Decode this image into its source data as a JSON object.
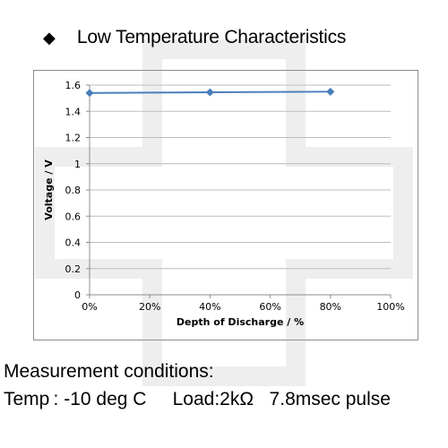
{
  "header": {
    "bullet": "◆",
    "title": "Low Temperature Characteristics"
  },
  "chart_data": {
    "type": "line",
    "xlabel": "Depth of Discharge / %",
    "ylabel": "Voltage / V",
    "x_ticks": [
      "0%",
      "20%",
      "40%",
      "60%",
      "80%",
      "100%"
    ],
    "y_ticks": [
      "0",
      "0.2",
      "0.4",
      "0.6",
      "0.8",
      "1",
      "1.2",
      "1.4",
      "1.6"
    ],
    "xlim": [
      0,
      100
    ],
    "ylim": [
      0,
      1.6
    ],
    "grid": "horizontal",
    "series": [
      {
        "color": "#4a7ebb",
        "marker": "diamond",
        "x": [
          0,
          40,
          80
        ],
        "y": [
          1.54,
          1.545,
          1.55
        ]
      }
    ]
  },
  "measurement": {
    "line1": "Measurement conditions:",
    "line2": "Temp : -10 deg C     Load:2kΩ   7.8msec pulse"
  },
  "watermark_color": "#eeeeee"
}
